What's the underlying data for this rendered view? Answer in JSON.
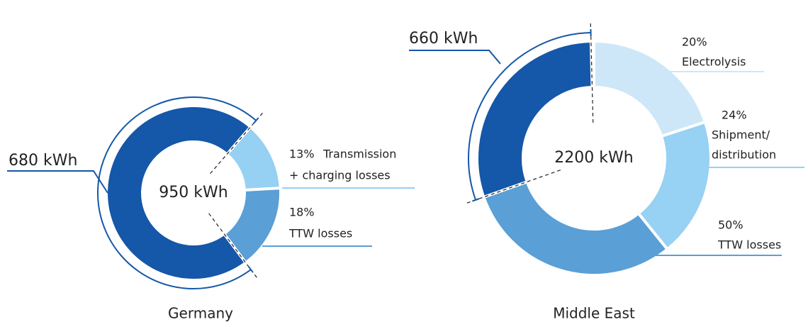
{
  "chart_data": [
    {
      "type": "donut",
      "title": "Germany",
      "total": {
        "value": 950,
        "label": "950 kWh"
      },
      "remaining": {
        "value": 680,
        "label": "680 kWh"
      },
      "color": "#1557a8",
      "segments": [
        {
          "value": 13,
          "value_label": "13%",
          "label": [
            "Transmission",
            "+ charging losses"
          ],
          "color": "#96d0f2"
        },
        {
          "value": 18,
          "value_label": "18%",
          "label": [
            "TTW losses"
          ],
          "color": "#5a9fd6"
        }
      ]
    },
    {
      "type": "donut",
      "title": "Middle East",
      "total": {
        "value": 2200,
        "label": "2200 kWh"
      },
      "remaining": {
        "value": 660,
        "label": "660 kWh"
      },
      "color": "#1557a8",
      "segments": [
        {
          "value": 20,
          "value_label": "20%",
          "label": [
            "Electrolysis"
          ],
          "color": "#cde7f8"
        },
        {
          "value": 24,
          "value_label": "24%",
          "label": [
            "Shipment/",
            "distribution"
          ],
          "color": "#97d1f3"
        },
        {
          "value": 50,
          "value_label": "50%",
          "label": [
            "TTW losses"
          ],
          "color": "#5a9fd6"
        }
      ]
    }
  ]
}
